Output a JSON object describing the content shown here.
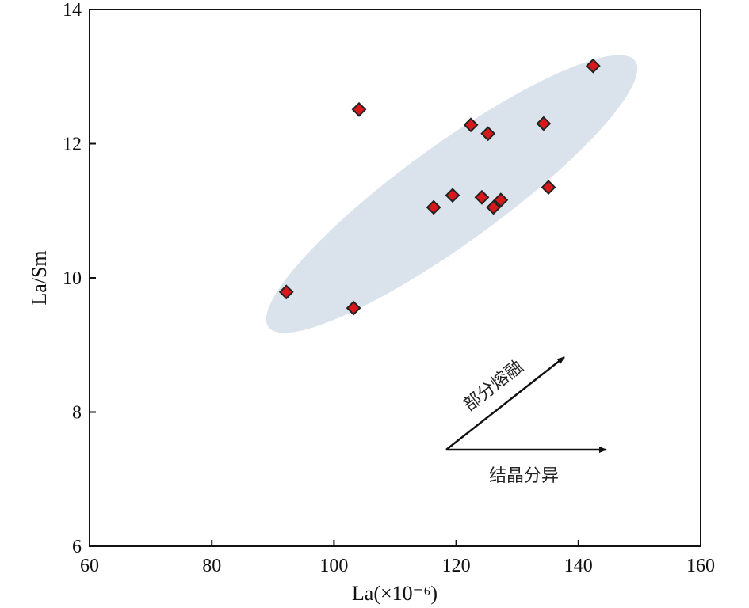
{
  "chart_data": {
    "type": "scatter",
    "title": "",
    "xlabel": "La(×10⁻⁶)",
    "ylabel": "La/Sm",
    "xlim": [
      60,
      160
    ],
    "ylim": [
      6,
      14
    ],
    "xticks": [
      "60",
      "80",
      "100",
      "120",
      "140",
      "160"
    ],
    "yticks": [
      "6",
      "8",
      "10",
      "12",
      "14"
    ],
    "grid": false,
    "marker": "diamond",
    "marker_color": "#d7191c",
    "ellipse_color": "#dae3ec",
    "series": [
      {
        "name": "samples",
        "points": [
          {
            "x": 92.2,
            "y": 9.79
          },
          {
            "x": 103.2,
            "y": 9.55
          },
          {
            "x": 104.1,
            "y": 12.51
          },
          {
            "x": 116.3,
            "y": 11.05
          },
          {
            "x": 119.4,
            "y": 11.23
          },
          {
            "x": 122.4,
            "y": 12.28
          },
          {
            "x": 125.2,
            "y": 12.15
          },
          {
            "x": 124.2,
            "y": 11.2
          },
          {
            "x": 126.1,
            "y": 11.05
          },
          {
            "x": 127.3,
            "y": 11.16
          },
          {
            "x": 134.3,
            "y": 12.3
          },
          {
            "x": 135.1,
            "y": 11.35
          },
          {
            "x": 142.4,
            "y": 13.16
          }
        ]
      }
    ],
    "annotations": {
      "partial_melting": "部分熔融",
      "fractional_crystallization": "结晶分异"
    }
  }
}
